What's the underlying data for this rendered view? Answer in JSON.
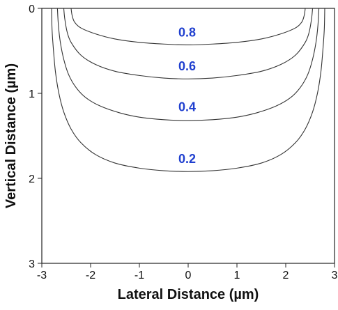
{
  "chart_data": {
    "type": "line",
    "title": "",
    "xlabel": "Lateral Distance (µm)",
    "ylabel": "Vertical Distance (µm)",
    "xlim": [
      -3,
      3
    ],
    "ylim": [
      0,
      3
    ],
    "y_inverted": true,
    "grid": false,
    "legend": "none",
    "x_ticks": [
      "-3",
      "-2",
      "-1",
      "0",
      "1",
      "2",
      "3"
    ],
    "y_ticks": [
      "0",
      "1",
      "2",
      "3"
    ],
    "line_color": "#333333",
    "label_color": "#1f3fcf",
    "series": [
      {
        "name": "0.8",
        "label_at": [
          -0.2,
          0.33
        ],
        "x": [
          -2.4,
          -2.38,
          -2.33,
          -2.2,
          -1.9,
          -1.5,
          -1.0,
          -0.5,
          0,
          0.5,
          1.0,
          1.5,
          1.9,
          2.2,
          2.33,
          2.38,
          2.4
        ],
        "y": [
          0.0,
          0.08,
          0.16,
          0.23,
          0.3,
          0.36,
          0.4,
          0.42,
          0.43,
          0.42,
          0.4,
          0.36,
          0.3,
          0.23,
          0.16,
          0.08,
          0.0
        ]
      },
      {
        "name": "0.6",
        "label_at": [
          -0.2,
          0.73
        ],
        "x": [
          -2.55,
          -2.53,
          -2.48,
          -2.4,
          -2.2,
          -1.9,
          -1.5,
          -1.0,
          -0.5,
          0,
          0.5,
          1.0,
          1.5,
          1.9,
          2.2,
          2.4,
          2.48,
          2.53,
          2.55
        ],
        "y": [
          0.0,
          0.12,
          0.28,
          0.4,
          0.55,
          0.66,
          0.74,
          0.79,
          0.82,
          0.83,
          0.82,
          0.79,
          0.74,
          0.66,
          0.55,
          0.4,
          0.28,
          0.12,
          0.0
        ]
      },
      {
        "name": "0.4",
        "label_at": [
          -0.2,
          1.21
        ],
        "x": [
          -2.68,
          -2.66,
          -2.62,
          -2.55,
          -2.45,
          -2.3,
          -2.1,
          -1.8,
          -1.4,
          -1.0,
          -0.5,
          0,
          0.5,
          1.0,
          1.4,
          1.8,
          2.1,
          2.3,
          2.45,
          2.55,
          2.62,
          2.66,
          2.68
        ],
        "y": [
          0.0,
          0.2,
          0.4,
          0.6,
          0.78,
          0.93,
          1.05,
          1.15,
          1.23,
          1.28,
          1.31,
          1.32,
          1.31,
          1.28,
          1.23,
          1.15,
          1.05,
          0.93,
          0.78,
          0.6,
          0.4,
          0.2,
          0.0
        ]
      },
      {
        "name": "0.2",
        "label_at": [
          -0.2,
          1.82
        ],
        "x": [
          -2.8,
          -2.79,
          -2.76,
          -2.72,
          -2.65,
          -2.55,
          -2.4,
          -2.2,
          -1.9,
          -1.5,
          -1.0,
          -0.5,
          0,
          0.5,
          1.0,
          1.5,
          1.9,
          2.2,
          2.4,
          2.55,
          2.65,
          2.72,
          2.76,
          2.79,
          2.8
        ],
        "y": [
          0.0,
          0.25,
          0.5,
          0.75,
          1.0,
          1.22,
          1.42,
          1.58,
          1.72,
          1.82,
          1.88,
          1.91,
          1.92,
          1.91,
          1.88,
          1.82,
          1.72,
          1.58,
          1.42,
          1.22,
          1.0,
          0.75,
          0.5,
          0.25,
          0.0
        ]
      }
    ]
  }
}
